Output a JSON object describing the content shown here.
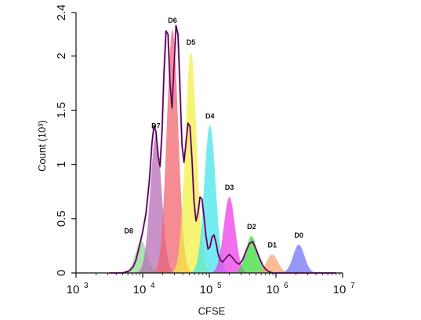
{
  "chart_data": {
    "type": "area",
    "xlabel": "CFSE",
    "ylabel": "Count (10³)",
    "x_scale": "log",
    "xlim": [
      1000,
      10000000
    ],
    "ylim": [
      0,
      2.4
    ],
    "x_ticks": [
      {
        "base": "10",
        "exp": "3",
        "value": 1000
      },
      {
        "base": "10",
        "exp": "4",
        "value": 10000
      },
      {
        "base": "10",
        "exp": "5",
        "value": 100000
      },
      {
        "base": "10",
        "exp": "6",
        "value": 1000000
      },
      {
        "base": "10",
        "exp": "7",
        "value": 10000000
      }
    ],
    "y_ticks": [
      {
        "label": "0",
        "value": 0
      },
      {
        "label": "0.5",
        "value": 0.5
      },
      {
        "label": "1",
        "value": 1
      },
      {
        "label": "1.5",
        "value": 1.5
      },
      {
        "label": "2",
        "value": 2
      },
      {
        "label": "2.4",
        "value": 2.4
      }
    ],
    "peaks": [
      {
        "name": "D8",
        "center": 9500,
        "height": 0.3,
        "color": "#8fd68f"
      },
      {
        "name": "D7",
        "center": 15800,
        "height": 1.27,
        "color": "#b46ab4"
      },
      {
        "name": "D6",
        "center": 28000,
        "height": 2.24,
        "color": "#f2606a"
      },
      {
        "name": "D5",
        "center": 53000,
        "height": 2.04,
        "color": "#f3f040"
      },
      {
        "name": "D4",
        "center": 102000,
        "height": 1.36,
        "color": "#3fe3ec"
      },
      {
        "name": "D3",
        "center": 200000,
        "height": 0.7,
        "color": "#ec38e8"
      },
      {
        "name": "D2",
        "center": 430000,
        "height": 0.34,
        "color": "#34db34"
      },
      {
        "name": "D1",
        "center": 880000,
        "height": 0.17,
        "color": "#f6a26a"
      },
      {
        "name": "D0",
        "center": 2200000,
        "height": 0.26,
        "color": "#6e6ef4"
      }
    ],
    "observed_curve": {
      "log10_x": [
        3.5,
        3.7,
        3.8,
        3.86,
        3.9,
        3.94,
        3.97,
        4.0,
        4.05,
        4.1,
        4.14,
        4.17,
        4.2,
        4.23,
        4.26,
        4.29,
        4.32,
        4.35,
        4.38,
        4.41,
        4.44,
        4.47,
        4.5,
        4.53,
        4.56,
        4.59,
        4.62,
        4.65,
        4.68,
        4.71,
        4.74,
        4.77,
        4.8,
        4.83,
        4.86,
        4.89,
        4.92,
        4.95,
        4.98,
        5.01,
        5.04,
        5.07,
        5.1,
        5.13,
        5.16,
        5.2,
        5.25,
        5.3,
        5.35,
        5.4,
        5.45,
        5.5,
        5.55,
        5.6,
        5.65,
        5.7,
        5.75,
        5.8,
        5.85,
        5.9,
        5.95,
        6.0,
        6.05,
        6.1,
        6.15,
        6.2,
        6.25,
        6.3,
        6.34,
        6.38,
        6.42,
        6.46,
        6.5,
        6.55,
        6.6,
        6.7,
        6.9
      ],
      "count": [
        0.0,
        0.0,
        0.02,
        0.06,
        0.12,
        0.22,
        0.3,
        0.38,
        0.55,
        0.85,
        1.2,
        1.36,
        1.3,
        1.08,
        0.98,
        1.3,
        1.85,
        2.23,
        2.2,
        1.75,
        1.52,
        1.9,
        2.28,
        2.2,
        1.7,
        1.18,
        1.02,
        1.2,
        1.38,
        1.35,
        1.05,
        0.66,
        0.48,
        0.55,
        0.7,
        0.68,
        0.52,
        0.34,
        0.22,
        0.24,
        0.33,
        0.35,
        0.28,
        0.18,
        0.12,
        0.1,
        0.14,
        0.17,
        0.14,
        0.1,
        0.08,
        0.12,
        0.2,
        0.27,
        0.29,
        0.22,
        0.14,
        0.07,
        0.03,
        0.01,
        0.0,
        0.0,
        0.0,
        0.0,
        0.0,
        0.0,
        0.0,
        0.0,
        0.0,
        0.0,
        0.0,
        0.0,
        0.0,
        0.0,
        0.0,
        0.0,
        0.0
      ]
    }
  }
}
